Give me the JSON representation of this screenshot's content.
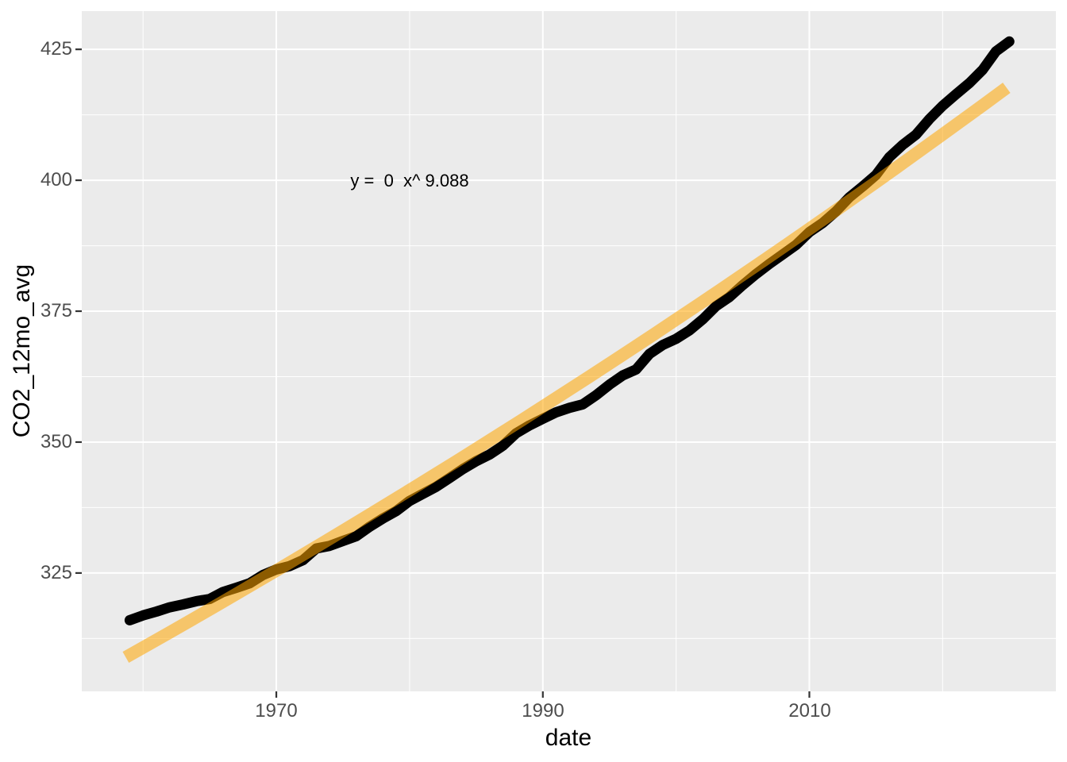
{
  "chart_data": {
    "type": "line",
    "xlabel": "date",
    "ylabel": "CO2_12mo_avg",
    "xlim": [
      1955.4,
      2028.5
    ],
    "ylim": [
      302.4,
      432.3
    ],
    "grid": "major+minor",
    "legend_position": "none",
    "x_major_ticks": [
      1970,
      1990,
      2010
    ],
    "x_tick_labels": [
      "1970",
      "1990",
      "2010"
    ],
    "x_minor_ticks": [
      1960,
      1980,
      2000,
      2020
    ],
    "y_major_ticks": [
      325,
      350,
      375,
      400,
      425
    ],
    "y_tick_labels": [
      "325",
      "350",
      "375",
      "400",
      "425"
    ],
    "y_minor_ticks": [
      312.5,
      337.5,
      362.5,
      387.5,
      412.5
    ],
    "colors": {
      "panel_background": "#EBEBEB",
      "page_background": "#FFFFFF",
      "gridline": "#FFFFFF",
      "tick_mark": "#333333",
      "tick_label": "#4D4D4D",
      "series_line": "#000000",
      "fit_line": "#FFA500"
    },
    "annotation": {
      "text": "y =  0  x^ 9.088",
      "x": 1980,
      "y": 399.8
    },
    "series": [
      {
        "name": "CO2_12mo_avg",
        "color": "#000000",
        "years": [
          1959,
          1960,
          1961,
          1962,
          1963,
          1964,
          1965,
          1966,
          1967,
          1968,
          1969,
          1970,
          1971,
          1972,
          1973,
          1974,
          1975,
          1976,
          1977,
          1978,
          1979,
          1980,
          1981,
          1982,
          1983,
          1984,
          1985,
          1986,
          1987,
          1988,
          1989,
          1990,
          1991,
          1992,
          1993,
          1994,
          1995,
          1996,
          1997,
          1998,
          1999,
          2000,
          2001,
          2002,
          2003,
          2004,
          2005,
          2006,
          2007,
          2008,
          2009,
          2010,
          2011,
          2012,
          2013,
          2014,
          2015,
          2016,
          2017,
          2018,
          2019,
          2020,
          2021,
          2022,
          2023,
          2024,
          2025
        ],
        "values": [
          315.98,
          316.91,
          317.64,
          318.45,
          318.99,
          319.62,
          320.04,
          321.37,
          322.18,
          323.05,
          324.62,
          325.68,
          326.32,
          327.46,
          329.68,
          330.19,
          331.12,
          332.03,
          333.84,
          335.41,
          336.84,
          338.76,
          340.12,
          341.48,
          343.15,
          344.85,
          346.35,
          347.61,
          349.31,
          351.69,
          353.2,
          354.45,
          355.7,
          356.54,
          357.21,
          358.96,
          360.97,
          362.74,
          363.88,
          366.84,
          368.54,
          369.71,
          371.32,
          373.45,
          375.98,
          377.7,
          379.98,
          382.09,
          384.02,
          385.83,
          387.64,
          390.1,
          391.85,
          394.06,
          396.74,
          398.81,
          401.01,
          404.41,
          406.76,
          408.72,
          411.65,
          414.21,
          416.41,
          418.53,
          421.08,
          424.61,
          426.5
        ]
      },
      {
        "name": "power_fit",
        "color": "#FFA500",
        "opacity": 0.55,
        "fit": {
          "form": "y = a * x^b",
          "a_label": "0",
          "exponent": 9.088,
          "x_start": 1958.7,
          "x_end": 2024.8,
          "y_start": 308.9,
          "y_end": 417.6
        }
      }
    ]
  },
  "labels": {
    "x_axis_title": "date",
    "y_axis_title": "CO2_12mo_avg"
  }
}
